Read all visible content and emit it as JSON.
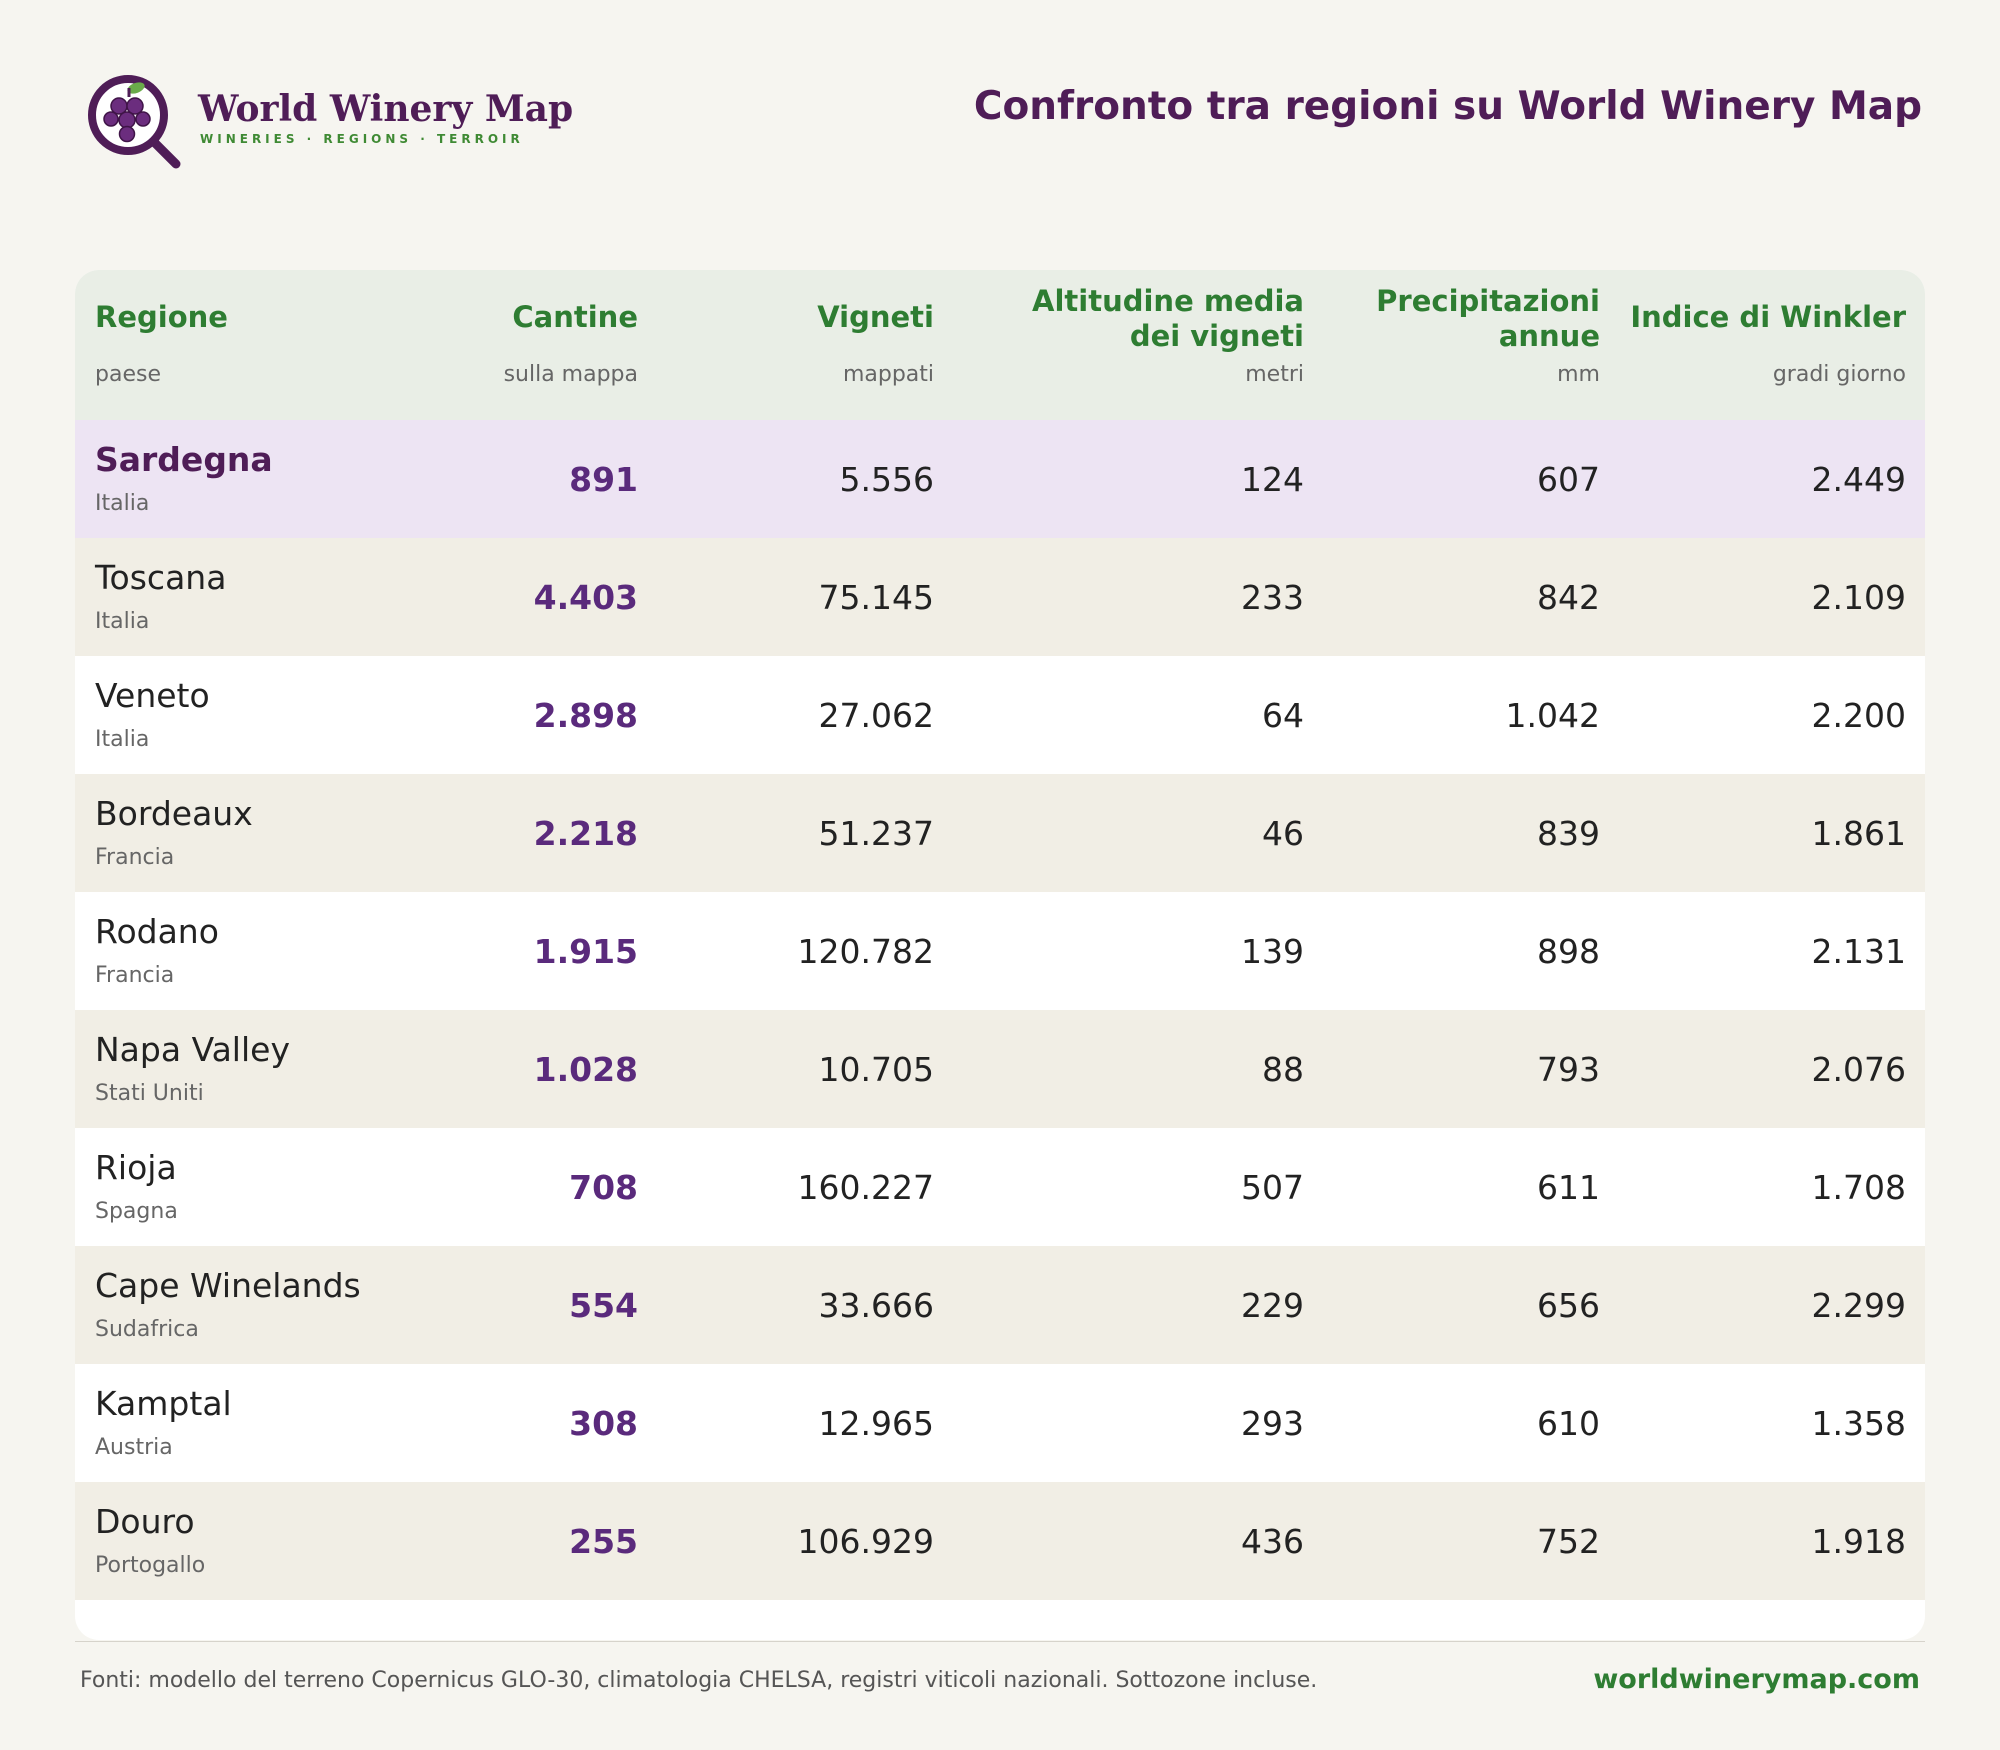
{
  "brand": {
    "name": "World Winery Map",
    "tagline": "WINERIES · REGIONS · TERROIR",
    "logo_icon": "grape-magnifier-icon",
    "colors": {
      "primary": "#4f1d57",
      "accent": "#3f8a34",
      "grape": "#6b2d7e"
    }
  },
  "page_title": "Confronto tra regioni su World Winery Map",
  "table": {
    "columns": [
      {
        "title": "Regione",
        "sub": "paese"
      },
      {
        "title": "Cantine",
        "sub": "sulla mappa"
      },
      {
        "title": "Vigneti",
        "sub": "mappati"
      },
      {
        "title": "Altitudine media dei vigneti",
        "sub": "metri"
      },
      {
        "title": "Precipitazioni annue",
        "sub": "mm"
      },
      {
        "title": "Indice di Winkler",
        "sub": "gradi giorno"
      }
    ],
    "rows": [
      {
        "region": "Sardegna",
        "country": "Italia",
        "wineries": "891",
        "vineyards": "5.556",
        "altitude": "124",
        "precip": "607",
        "winkler": "2.449"
      },
      {
        "region": "Toscana",
        "country": "Italia",
        "wineries": "4.403",
        "vineyards": "75.145",
        "altitude": "233",
        "precip": "842",
        "winkler": "2.109"
      },
      {
        "region": "Veneto",
        "country": "Italia",
        "wineries": "2.898",
        "vineyards": "27.062",
        "altitude": "64",
        "precip": "1.042",
        "winkler": "2.200"
      },
      {
        "region": "Bordeaux",
        "country": "Francia",
        "wineries": "2.218",
        "vineyards": "51.237",
        "altitude": "46",
        "precip": "839",
        "winkler": "1.861"
      },
      {
        "region": "Rodano",
        "country": "Francia",
        "wineries": "1.915",
        "vineyards": "120.782",
        "altitude": "139",
        "precip": "898",
        "winkler": "2.131"
      },
      {
        "region": "Napa Valley",
        "country": "Stati Uniti",
        "wineries": "1.028",
        "vineyards": "10.705",
        "altitude": "88",
        "precip": "793",
        "winkler": "2.076"
      },
      {
        "region": "Rioja",
        "country": "Spagna",
        "wineries": "708",
        "vineyards": "160.227",
        "altitude": "507",
        "precip": "611",
        "winkler": "1.708"
      },
      {
        "region": "Cape Winelands",
        "country": "Sudafrica",
        "wineries": "554",
        "vineyards": "33.666",
        "altitude": "229",
        "precip": "656",
        "winkler": "2.299"
      },
      {
        "region": "Kamptal",
        "country": "Austria",
        "wineries": "308",
        "vineyards": "12.965",
        "altitude": "293",
        "precip": "610",
        "winkler": "1.358"
      },
      {
        "region": "Douro",
        "country": "Portogallo",
        "wineries": "255",
        "vineyards": "106.929",
        "altitude": "436",
        "precip": "752",
        "winkler": "1.918"
      }
    ]
  },
  "footer": {
    "source": "Fonti: modello del terreno Copernicus GLO-30, climatologia CHELSA, registri viticoli nazionali. Sottozone incluse.",
    "url": "worldwinerymap.com"
  }
}
